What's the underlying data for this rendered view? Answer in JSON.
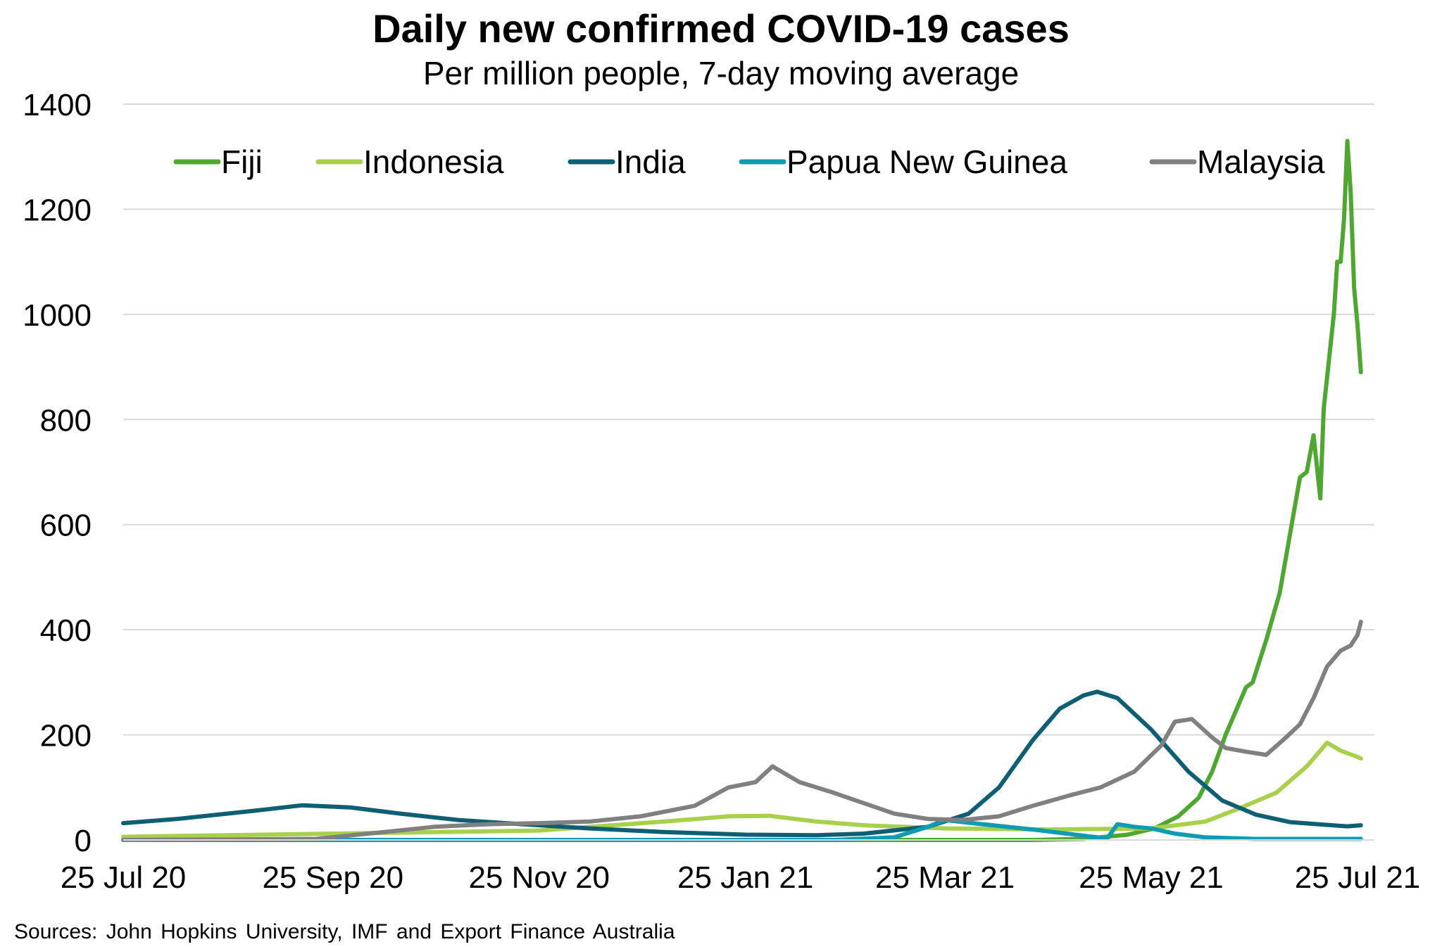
{
  "chart_data": {
    "type": "line",
    "title": "Daily new confirmed COVID-19 cases",
    "subtitle": "Per million people, 7-day moving average",
    "xlabel": "",
    "ylabel": "",
    "x_start": "2020-07-25",
    "x_end": "2021-07-25",
    "xlim": [
      "2020-07-25",
      "2021-07-30"
    ],
    "ylim": [
      0,
      1400
    ],
    "y_ticks": [
      0,
      200,
      400,
      600,
      800,
      1000,
      1200,
      1400
    ],
    "x_ticks": [
      {
        "date": "2020-07-25",
        "label": "25 Jul 20"
      },
      {
        "date": "2020-09-25",
        "label": "25 Sep 20"
      },
      {
        "date": "2020-11-25",
        "label": "25 Nov 20"
      },
      {
        "date": "2021-01-25",
        "label": "25 Jan 21"
      },
      {
        "date": "2021-03-25",
        "label": "25 Mar 21"
      },
      {
        "date": "2021-05-25",
        "label": "25 May 21"
      },
      {
        "date": "2021-07-25",
        "label": "25 Jul 21"
      }
    ],
    "grid": "horizontal",
    "legend": "top",
    "series": [
      {
        "name": "Fiji",
        "color": "#4ea72e",
        "points": [
          [
            "2020-07-25",
            0
          ],
          [
            "2021-04-20",
            0
          ],
          [
            "2021-05-05",
            2
          ],
          [
            "2021-05-18",
            10
          ],
          [
            "2021-05-26",
            22
          ],
          [
            "2021-06-02",
            45
          ],
          [
            "2021-06-08",
            80
          ],
          [
            "2021-06-12",
            130
          ],
          [
            "2021-06-16",
            200
          ],
          [
            "2021-06-22",
            290
          ],
          [
            "2021-06-24",
            300
          ],
          [
            "2021-06-28",
            380
          ],
          [
            "2021-07-02",
            470
          ],
          [
            "2021-07-05",
            580
          ],
          [
            "2021-07-08",
            690
          ],
          [
            "2021-07-10",
            700
          ],
          [
            "2021-07-12",
            770
          ],
          [
            "2021-07-14",
            650
          ],
          [
            "2021-07-15",
            820
          ],
          [
            "2021-07-18",
            1000
          ],
          [
            "2021-07-19",
            1100
          ],
          [
            "2021-07-20",
            1100
          ],
          [
            "2021-07-21",
            1180
          ],
          [
            "2021-07-22",
            1330
          ],
          [
            "2021-07-23",
            1230
          ],
          [
            "2021-07-24",
            1050
          ],
          [
            "2021-07-25",
            980
          ],
          [
            "2021-07-26",
            890
          ]
        ]
      },
      {
        "name": "Indonesia",
        "color": "#a9d04c",
        "points": [
          [
            "2020-07-25",
            6
          ],
          [
            "2020-09-25",
            12
          ],
          [
            "2020-11-25",
            18
          ],
          [
            "2021-01-01",
            35
          ],
          [
            "2021-01-20",
            45
          ],
          [
            "2021-02-01",
            46
          ],
          [
            "2021-02-15",
            35
          ],
          [
            "2021-03-01",
            28
          ],
          [
            "2021-03-25",
            22
          ],
          [
            "2021-04-25",
            20
          ],
          [
            "2021-05-25",
            22
          ],
          [
            "2021-06-10",
            35
          ],
          [
            "2021-06-20",
            60
          ],
          [
            "2021-07-01",
            90
          ],
          [
            "2021-07-10",
            140
          ],
          [
            "2021-07-14",
            170
          ],
          [
            "2021-07-16",
            185
          ],
          [
            "2021-07-20",
            170
          ],
          [
            "2021-07-25",
            158
          ],
          [
            "2021-07-26",
            155
          ]
        ]
      },
      {
        "name": "India",
        "color": "#0e5f73",
        "points": [
          [
            "2020-07-25",
            32
          ],
          [
            "2020-08-10",
            40
          ],
          [
            "2020-09-01",
            55
          ],
          [
            "2020-09-16",
            66
          ],
          [
            "2020-09-30",
            62
          ],
          [
            "2020-10-15",
            50
          ],
          [
            "2020-11-01",
            38
          ],
          [
            "2020-11-20",
            30
          ],
          [
            "2020-12-10",
            22
          ],
          [
            "2021-01-01",
            15
          ],
          [
            "2021-01-25",
            10
          ],
          [
            "2021-02-15",
            9
          ],
          [
            "2021-03-01",
            12
          ],
          [
            "2021-03-20",
            25
          ],
          [
            "2021-04-01",
            50
          ],
          [
            "2021-04-10",
            100
          ],
          [
            "2021-04-20",
            190
          ],
          [
            "2021-04-28",
            250
          ],
          [
            "2021-05-05",
            275
          ],
          [
            "2021-05-09",
            282
          ],
          [
            "2021-05-15",
            270
          ],
          [
            "2021-05-25",
            210
          ],
          [
            "2021-06-05",
            130
          ],
          [
            "2021-06-15",
            75
          ],
          [
            "2021-06-25",
            48
          ],
          [
            "2021-07-05",
            34
          ],
          [
            "2021-07-15",
            29
          ],
          [
            "2021-07-22",
            26
          ],
          [
            "2021-07-26",
            28
          ]
        ]
      },
      {
        "name": "Papua New Guinea",
        "color": "#0f9cb3",
        "points": [
          [
            "2020-07-25",
            0
          ],
          [
            "2021-02-20",
            0
          ],
          [
            "2021-03-10",
            5
          ],
          [
            "2021-03-20",
            25
          ],
          [
            "2021-03-25",
            38
          ],
          [
            "2021-04-05",
            30
          ],
          [
            "2021-04-20",
            20
          ],
          [
            "2021-05-05",
            8
          ],
          [
            "2021-05-12",
            3
          ],
          [
            "2021-05-15",
            30
          ],
          [
            "2021-05-20",
            25
          ],
          [
            "2021-05-25",
            22
          ],
          [
            "2021-06-01",
            12
          ],
          [
            "2021-06-10",
            5
          ],
          [
            "2021-06-25",
            2
          ],
          [
            "2021-07-26",
            2
          ]
        ]
      },
      {
        "name": "Malaysia",
        "color": "#808080",
        "points": [
          [
            "2020-07-25",
            0
          ],
          [
            "2020-09-20",
            2
          ],
          [
            "2020-10-10",
            15
          ],
          [
            "2020-10-25",
            25
          ],
          [
            "2020-11-10",
            30
          ],
          [
            "2020-11-25",
            32
          ],
          [
            "2020-12-10",
            35
          ],
          [
            "2020-12-25",
            45
          ],
          [
            "2021-01-10",
            65
          ],
          [
            "2021-01-20",
            100
          ],
          [
            "2021-01-28",
            110
          ],
          [
            "2021-02-02",
            140
          ],
          [
            "2021-02-10",
            110
          ],
          [
            "2021-02-20",
            90
          ],
          [
            "2021-03-01",
            70
          ],
          [
            "2021-03-10",
            50
          ],
          [
            "2021-03-20",
            40
          ],
          [
            "2021-03-30",
            38
          ],
          [
            "2021-04-10",
            45
          ],
          [
            "2021-04-20",
            65
          ],
          [
            "2021-05-01",
            85
          ],
          [
            "2021-05-10",
            100
          ],
          [
            "2021-05-20",
            130
          ],
          [
            "2021-05-28",
            180
          ],
          [
            "2021-06-01",
            225
          ],
          [
            "2021-06-06",
            230
          ],
          [
            "2021-06-12",
            195
          ],
          [
            "2021-06-16",
            175
          ],
          [
            "2021-06-22",
            168
          ],
          [
            "2021-06-28",
            162
          ],
          [
            "2021-07-03",
            190
          ],
          [
            "2021-07-08",
            220
          ],
          [
            "2021-07-12",
            270
          ],
          [
            "2021-07-16",
            330
          ],
          [
            "2021-07-20",
            360
          ],
          [
            "2021-07-23",
            370
          ],
          [
            "2021-07-25",
            390
          ],
          [
            "2021-07-26",
            415
          ]
        ]
      }
    ]
  },
  "source_note": "Sources: John Hopkins University, IMF and Export Finance Australia"
}
